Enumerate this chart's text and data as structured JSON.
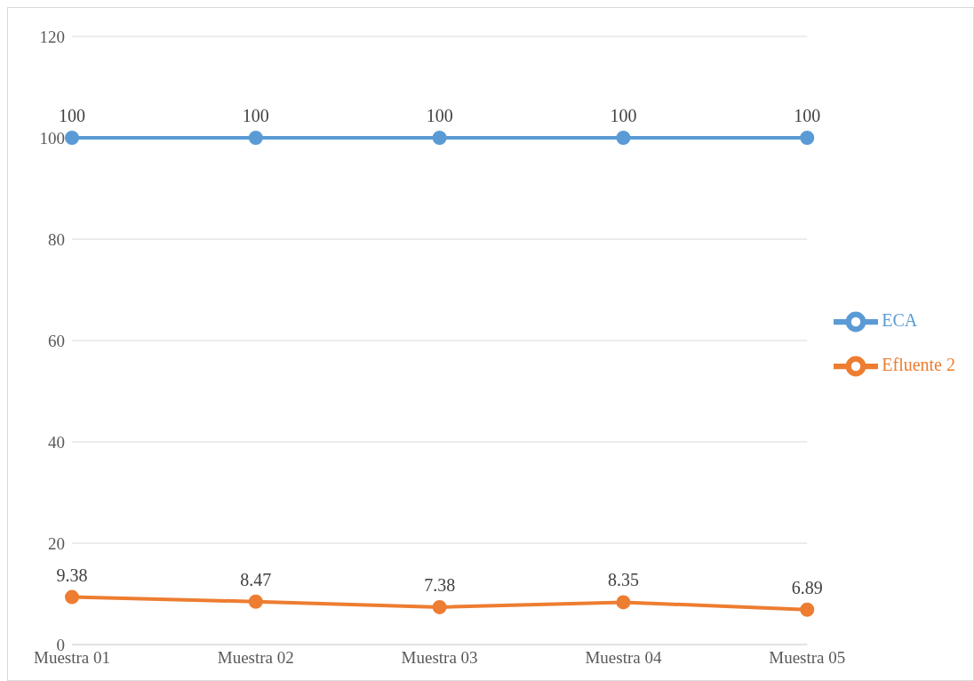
{
  "chart_data": {
    "type": "line",
    "categories": [
      "Muestra 01",
      "Muestra 02",
      "Muestra 03",
      "Muestra 04",
      "Muestra 05"
    ],
    "series": [
      {
        "name": "ECA",
        "color": "#5b9bd5",
        "values": [
          100,
          100,
          100,
          100,
          100
        ]
      },
      {
        "name": "Efluente 2",
        "color": "#ed7d31",
        "values": [
          9.38,
          8.47,
          7.38,
          8.35,
          6.89
        ]
      }
    ],
    "ylim": [
      0,
      120
    ],
    "yticks": [
      0,
      20,
      40,
      60,
      80,
      100,
      120
    ],
    "grid": "y",
    "legend": "right",
    "marker": "circle",
    "line_style": "solid",
    "data_labels": true
  }
}
